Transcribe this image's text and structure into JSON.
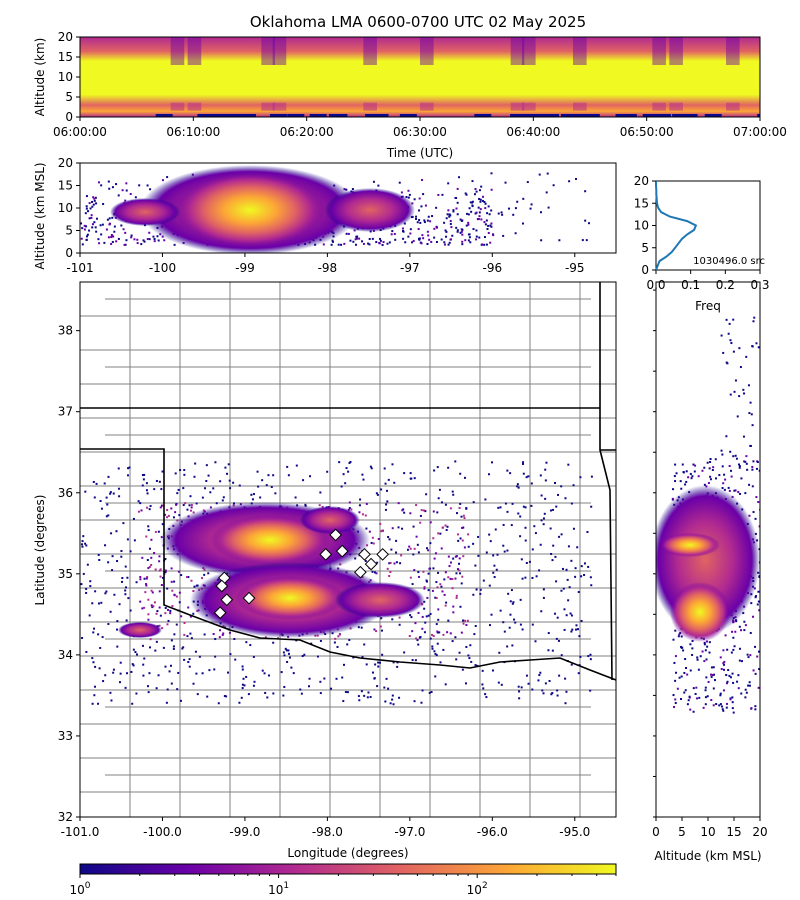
{
  "chart_data": {
    "title": "Oklahoma LMA 0600-0700 UTC 02 May 2025",
    "colormap": [
      "#0d0887",
      "#6a00a8",
      "#b12a90",
      "#e16462",
      "#fca636",
      "#f0f921"
    ],
    "marker_color": "#ffffff",
    "border_color": "#000000",
    "county_color": "#808080",
    "panels": [
      {
        "type": "heatmap",
        "name": "time-height",
        "xlabel": "Time (UTC)",
        "ylabel": "Altitude (km)",
        "xticks": [
          "06:00:00",
          "06:10:00",
          "06:20:00",
          "06:30:00",
          "06:40:00",
          "06:50:00",
          "07:00:00"
        ],
        "xlim": [
          0,
          60
        ],
        "ylim": [
          0,
          20
        ],
        "yticks": [
          0,
          5,
          10,
          15,
          20
        ],
        "peak_altitude_band_km": [
          5,
          12
        ]
      },
      {
        "type": "heatmap",
        "name": "longitude-altitude",
        "ylabel": "Altitude (km MSL)",
        "xlim": [
          -101,
          -94.5
        ],
        "xticks": [
          -101,
          -100,
          -99,
          -98,
          -97,
          -96,
          -95
        ],
        "ylim": [
          0,
          20
        ],
        "yticks": [
          0,
          5,
          10,
          15,
          20
        ],
        "peak_longitude_range": [
          -99.3,
          -98.2
        ]
      },
      {
        "type": "line",
        "name": "altitude-histogram",
        "xlabel": "Freq",
        "xlim": [
          0,
          0.3
        ],
        "xticks": [
          "0.0",
          "0.1",
          "0.2",
          "0.3"
        ],
        "ylim": [
          0,
          20
        ],
        "yticks": [
          0,
          5,
          10,
          15,
          20
        ],
        "annotation": "1030496.0 src",
        "line_color": "#1f77b4",
        "altitude_km": [
          0,
          1,
          2,
          3,
          4,
          5,
          6,
          7,
          8,
          9,
          10,
          11,
          12,
          13,
          14,
          15,
          16,
          17,
          18,
          19,
          20
        ],
        "freq": [
          0.0,
          0.005,
          0.01,
          0.03,
          0.045,
          0.055,
          0.065,
          0.075,
          0.09,
          0.11,
          0.115,
          0.09,
          0.04,
          0.015,
          0.006,
          0.003,
          0.002,
          0.001,
          0.001,
          0.0,
          0.0
        ]
      },
      {
        "type": "heatmap",
        "name": "plan-view",
        "xlabel": "Longitude (degrees)",
        "ylabel": "Latitude (degrees)",
        "xlim": [
          -101,
          -94.5
        ],
        "ylim": [
          32,
          38.6
        ],
        "xticks": [
          "-101.0",
          "-100.0",
          "-99.0",
          "-98.0",
          "-97.0",
          "-96.0",
          "-95.0"
        ],
        "yticks": [
          32,
          33,
          34,
          35,
          36,
          37,
          38
        ],
        "stations": [
          [
            -97.9,
            35.48
          ],
          [
            -97.82,
            35.28
          ],
          [
            -98.02,
            35.24
          ],
          [
            -97.55,
            35.24
          ],
          [
            -97.33,
            35.24
          ],
          [
            -97.47,
            35.12
          ],
          [
            -97.6,
            35.02
          ],
          [
            -99.25,
            34.95
          ],
          [
            -99.28,
            34.85
          ],
          [
            -99.22,
            34.68
          ],
          [
            -98.95,
            34.7
          ],
          [
            -99.3,
            34.52
          ]
        ]
      },
      {
        "type": "heatmap",
        "name": "altitude-latitude",
        "xlabel": "Altitude (km MSL)",
        "xlim": [
          0,
          20
        ],
        "xticks": [
          0,
          5,
          10,
          15,
          20
        ],
        "ylim": [
          32,
          38.6
        ]
      }
    ],
    "colorbar": {
      "scale": "log",
      "range": [
        1,
        500
      ],
      "ticks": [
        {
          "base": "10",
          "exp": "0",
          "value": 1
        },
        {
          "base": "10",
          "exp": "1",
          "value": 10
        },
        {
          "base": "10",
          "exp": "2",
          "value": 100
        }
      ]
    }
  }
}
